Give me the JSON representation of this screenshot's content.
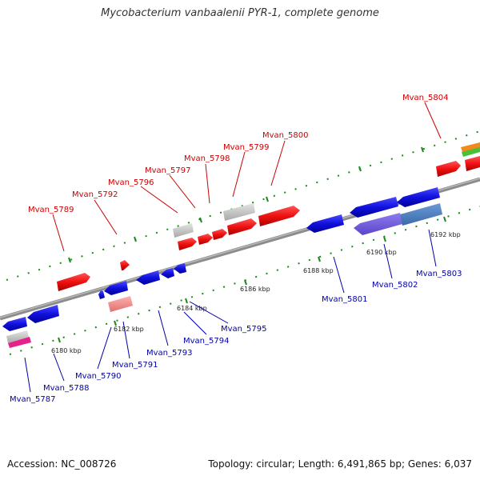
{
  "title": "Mycobacterium vanbaalenii PYR-1, complete genome",
  "footer": {
    "accession": "Accession: NC_008726",
    "summary": "Topology: circular; Length: 6,491,865 bp; Genes: 6,037"
  },
  "colors": {
    "backbone": "#8c8c8c",
    "forward_gene": "#ee1111",
    "reverse_gene": "#1111cc",
    "forward_label": "#cc0000",
    "reverse_label": "#0000aa",
    "tick": "#1a8a1a",
    "pseudo": "#c0c0c0"
  },
  "scale_ticks": [
    "6180 kbp",
    "6182 kbp",
    "6184 kbp",
    "6186 kbp",
    "6188 kbp",
    "6190 kbp",
    "6192 kbp"
  ],
  "labels": {
    "forward": [
      "Mvan_5789",
      "Mvan_5792",
      "Mvan_5796",
      "Mvan_5797",
      "Mvan_5798",
      "Mvan_5799",
      "Mvan_5800",
      "Mvan_5804"
    ],
    "reverse": [
      "Mvan_5787",
      "Mvan_5788",
      "Mvan_5790",
      "Mvan_5791",
      "Mvan_5793",
      "Mvan_5794",
      "Mvan_5795",
      "Mvan_5801",
      "Mvan_5802",
      "Mvan_5803"
    ]
  }
}
